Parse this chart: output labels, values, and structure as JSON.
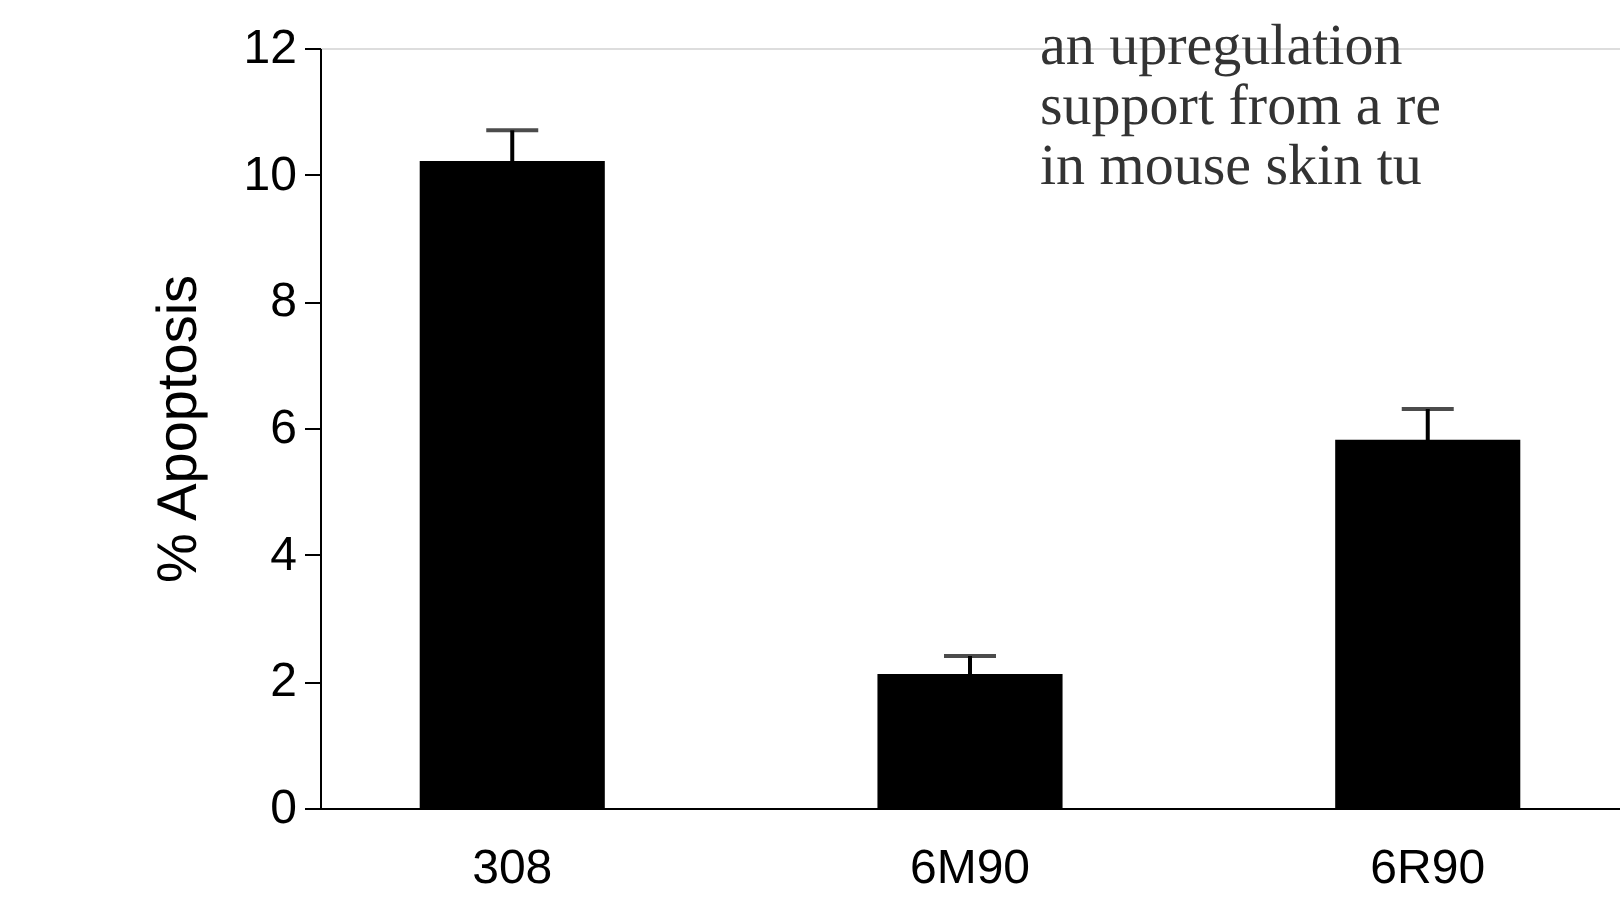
{
  "chart_data": {
    "type": "bar",
    "ylabel": "% Apoptosis",
    "categories": [
      "308",
      "6M90",
      "6R90"
    ],
    "values": [
      10.2,
      2.1,
      5.8
    ],
    "errors": [
      0.5,
      0.3,
      0.5
    ],
    "color": "#000000",
    "ylim": [
      0,
      12
    ],
    "yticks": [
      0,
      2,
      4,
      6,
      8,
      10,
      12
    ],
    "grid": false,
    "annotations": [
      "an upregulation",
      "support from a re",
      "in mouse skin tu"
    ]
  }
}
